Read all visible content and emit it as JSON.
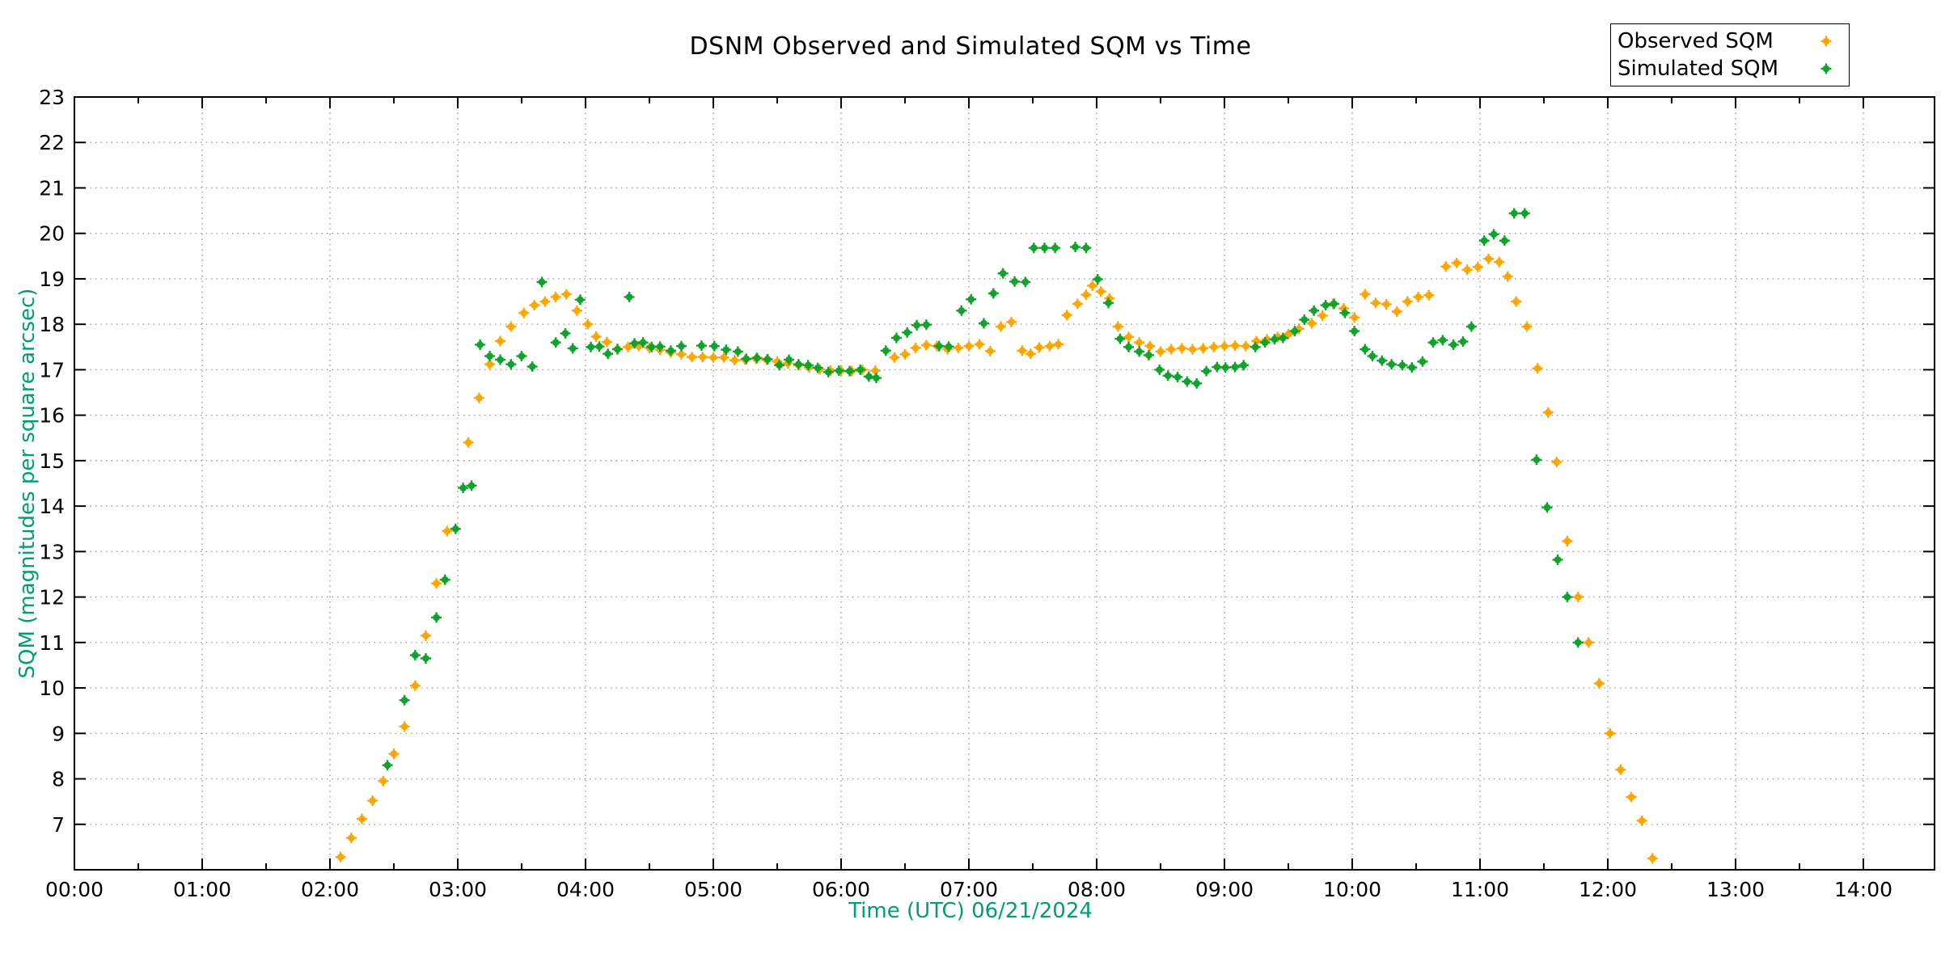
{
  "title": "DSNM Observed and Simulated SQM vs Time",
  "x_axis": {
    "label": "Time (UTC)   06/21/2024",
    "tick_labels": [
      "00:00",
      "01:00",
      "02:00",
      "03:00",
      "04:00",
      "05:00",
      "06:00",
      "07:00",
      "08:00",
      "09:00",
      "10:00",
      "11:00",
      "12:00",
      "13:00",
      "14:00"
    ]
  },
  "y_axis": {
    "label": "SQM (magnitudes per square arcsec)",
    "tick_labels": [
      "7",
      "8",
      "9",
      "10",
      "11",
      "12",
      "13",
      "14",
      "15",
      "16",
      "17",
      "18",
      "19",
      "20",
      "21",
      "22",
      "23"
    ]
  },
  "colors": {
    "axis_label_color": "#009E73",
    "observed": "#FFA500",
    "simulated": "#0FA32C",
    "grid": "#9e9e9e",
    "border": "#000000"
  },
  "legend": {
    "position": "top-right",
    "items": [
      {
        "label": "Observed SQM",
        "color": "#FFA500"
      },
      {
        "label": "Simulated SQM",
        "color": "#0FA32C"
      }
    ]
  },
  "chart_data": {
    "type": "scatter",
    "title": "DSNM Observed and Simulated SQM vs Time",
    "xlabel": "Time (UTC)   06/21/2024",
    "ylabel": "SQM (magnitudes per square arcsec)",
    "xlim_hours": [
      0,
      14.56
    ],
    "ylim": [
      6,
      23
    ],
    "grid": true,
    "x_major_tick_hours": 1,
    "x_minor_tick_hours": 0.5,
    "series": [
      {
        "name": "Observed SQM",
        "color": "#FFA500",
        "points": [
          [
            2.083,
            6.28
          ],
          [
            2.167,
            6.7
          ],
          [
            2.25,
            7.12
          ],
          [
            2.333,
            7.52
          ],
          [
            2.417,
            7.95
          ],
          [
            2.5,
            8.55
          ],
          [
            2.583,
            9.15
          ],
          [
            2.667,
            10.05
          ],
          [
            2.75,
            11.15
          ],
          [
            2.833,
            12.3
          ],
          [
            2.917,
            13.45
          ],
          [
            3.083,
            15.4
          ],
          [
            3.167,
            16.38
          ],
          [
            3.25,
            17.12
          ],
          [
            3.333,
            17.63
          ],
          [
            3.417,
            17.95
          ],
          [
            3.517,
            18.25
          ],
          [
            3.6,
            18.42
          ],
          [
            3.683,
            18.5
          ],
          [
            3.767,
            18.6
          ],
          [
            3.85,
            18.66
          ],
          [
            3.933,
            18.3
          ],
          [
            4.017,
            18.0
          ],
          [
            4.083,
            17.73
          ],
          [
            4.167,
            17.61
          ],
          [
            4.25,
            17.46
          ],
          [
            4.333,
            17.5
          ],
          [
            4.417,
            17.52
          ],
          [
            4.5,
            17.48
          ],
          [
            4.583,
            17.44
          ],
          [
            4.667,
            17.38
          ],
          [
            4.75,
            17.34
          ],
          [
            4.833,
            17.28
          ],
          [
            4.917,
            17.28
          ],
          [
            5.0,
            17.27
          ],
          [
            5.083,
            17.27
          ],
          [
            5.167,
            17.21
          ],
          [
            5.25,
            17.22
          ],
          [
            5.333,
            17.24
          ],
          [
            5.417,
            17.22
          ],
          [
            5.5,
            17.18
          ],
          [
            5.583,
            17.14
          ],
          [
            5.667,
            17.1
          ],
          [
            5.75,
            17.05
          ],
          [
            5.833,
            17.01
          ],
          [
            5.917,
            16.98
          ],
          [
            6.0,
            16.98
          ],
          [
            6.083,
            16.97
          ],
          [
            6.167,
            17.0
          ],
          [
            6.267,
            16.98
          ],
          [
            6.417,
            17.27
          ],
          [
            6.5,
            17.34
          ],
          [
            6.583,
            17.48
          ],
          [
            6.667,
            17.54
          ],
          [
            6.75,
            17.52
          ],
          [
            6.833,
            17.45
          ],
          [
            6.917,
            17.48
          ],
          [
            7.0,
            17.52
          ],
          [
            7.083,
            17.56
          ],
          [
            7.167,
            17.41
          ],
          [
            7.25,
            17.95
          ],
          [
            7.333,
            18.05
          ],
          [
            7.417,
            17.42
          ],
          [
            7.483,
            17.35
          ],
          [
            7.55,
            17.49
          ],
          [
            7.633,
            17.52
          ],
          [
            7.7,
            17.56
          ],
          [
            7.767,
            18.2
          ],
          [
            7.85,
            18.45
          ],
          [
            7.917,
            18.65
          ],
          [
            7.967,
            18.85
          ],
          [
            8.033,
            18.72
          ],
          [
            8.1,
            18.57
          ],
          [
            8.167,
            17.95
          ],
          [
            8.25,
            17.72
          ],
          [
            8.333,
            17.6
          ],
          [
            8.417,
            17.52
          ],
          [
            8.5,
            17.4
          ],
          [
            8.583,
            17.45
          ],
          [
            8.667,
            17.47
          ],
          [
            8.75,
            17.45
          ],
          [
            8.833,
            17.47
          ],
          [
            8.917,
            17.5
          ],
          [
            9.0,
            17.52
          ],
          [
            9.083,
            17.53
          ],
          [
            9.167,
            17.52
          ],
          [
            9.25,
            17.63
          ],
          [
            9.333,
            17.67
          ],
          [
            9.417,
            17.72
          ],
          [
            9.5,
            17.78
          ],
          [
            9.583,
            17.9
          ],
          [
            9.683,
            18.02
          ],
          [
            9.767,
            18.19
          ],
          [
            9.85,
            18.45
          ],
          [
            9.933,
            18.35
          ],
          [
            10.017,
            18.15
          ],
          [
            10.1,
            18.66
          ],
          [
            10.183,
            18.47
          ],
          [
            10.267,
            18.44
          ],
          [
            10.35,
            18.28
          ],
          [
            10.433,
            18.5
          ],
          [
            10.517,
            18.6
          ],
          [
            10.6,
            18.64
          ],
          [
            10.733,
            19.27
          ],
          [
            10.817,
            19.35
          ],
          [
            10.9,
            19.2
          ],
          [
            10.983,
            19.26
          ],
          [
            11.067,
            19.44
          ],
          [
            11.15,
            19.37
          ],
          [
            11.217,
            19.05
          ],
          [
            11.283,
            18.5
          ],
          [
            11.367,
            17.95
          ],
          [
            11.45,
            17.03
          ],
          [
            11.533,
            16.06
          ],
          [
            11.6,
            14.97
          ],
          [
            11.683,
            13.23
          ],
          [
            11.767,
            12.0
          ],
          [
            11.85,
            11.0
          ],
          [
            11.933,
            10.1
          ],
          [
            12.017,
            9.0
          ],
          [
            12.1,
            8.2
          ],
          [
            12.183,
            7.6
          ],
          [
            12.267,
            7.08
          ],
          [
            12.35,
            6.25
          ]
        ]
      },
      {
        "name": "Simulated SQM",
        "color": "#0FA32C",
        "points": [
          [
            2.45,
            8.3
          ],
          [
            2.583,
            9.73
          ],
          [
            2.667,
            10.72
          ],
          [
            2.75,
            10.65
          ],
          [
            2.833,
            11.55
          ],
          [
            2.9,
            12.38
          ],
          [
            2.983,
            13.5
          ],
          [
            3.042,
            14.4
          ],
          [
            3.108,
            14.45
          ],
          [
            3.175,
            17.55
          ],
          [
            3.25,
            17.3
          ],
          [
            3.333,
            17.22
          ],
          [
            3.417,
            17.12
          ],
          [
            3.5,
            17.3
          ],
          [
            3.583,
            17.07
          ],
          [
            3.658,
            18.93
          ],
          [
            3.767,
            17.6
          ],
          [
            3.842,
            17.8
          ],
          [
            3.9,
            17.47
          ],
          [
            3.958,
            18.54
          ],
          [
            4.042,
            17.5
          ],
          [
            4.108,
            17.51
          ],
          [
            4.175,
            17.35
          ],
          [
            4.25,
            17.45
          ],
          [
            4.342,
            18.6
          ],
          [
            4.383,
            17.58
          ],
          [
            4.45,
            17.6
          ],
          [
            4.517,
            17.5
          ],
          [
            4.583,
            17.51
          ],
          [
            4.667,
            17.42
          ],
          [
            4.75,
            17.52
          ],
          [
            4.908,
            17.53
          ],
          [
            5.008,
            17.52
          ],
          [
            5.1,
            17.44
          ],
          [
            5.192,
            17.4
          ],
          [
            5.258,
            17.24
          ],
          [
            5.342,
            17.26
          ],
          [
            5.425,
            17.23
          ],
          [
            5.517,
            17.1
          ],
          [
            5.592,
            17.22
          ],
          [
            5.667,
            17.12
          ],
          [
            5.742,
            17.1
          ],
          [
            5.817,
            17.04
          ],
          [
            5.9,
            16.95
          ],
          [
            5.983,
            16.98
          ],
          [
            6.067,
            16.97
          ],
          [
            6.15,
            17.0
          ],
          [
            6.217,
            16.85
          ],
          [
            6.275,
            16.82
          ],
          [
            6.35,
            17.42
          ],
          [
            6.433,
            17.7
          ],
          [
            6.517,
            17.82
          ],
          [
            6.592,
            17.98
          ],
          [
            6.667,
            17.99
          ],
          [
            6.767,
            17.52
          ],
          [
            6.842,
            17.51
          ],
          [
            6.942,
            18.3
          ],
          [
            7.017,
            18.55
          ],
          [
            7.117,
            18.02
          ],
          [
            7.192,
            18.68
          ],
          [
            7.267,
            19.12
          ],
          [
            7.358,
            18.94
          ],
          [
            7.442,
            18.93
          ],
          [
            7.508,
            19.68
          ],
          [
            7.592,
            19.68
          ],
          [
            7.675,
            19.68
          ],
          [
            7.833,
            19.7
          ],
          [
            7.917,
            19.68
          ],
          [
            8.008,
            18.99
          ],
          [
            8.092,
            18.47
          ],
          [
            8.183,
            17.68
          ],
          [
            8.25,
            17.5
          ],
          [
            8.333,
            17.4
          ],
          [
            8.408,
            17.32
          ],
          [
            8.492,
            17.0
          ],
          [
            8.558,
            16.87
          ],
          [
            8.633,
            16.84
          ],
          [
            8.708,
            16.74
          ],
          [
            8.783,
            16.7
          ],
          [
            8.858,
            16.97
          ],
          [
            8.942,
            17.06
          ],
          [
            9.008,
            17.05
          ],
          [
            9.083,
            17.06
          ],
          [
            9.15,
            17.1
          ],
          [
            9.242,
            17.5
          ],
          [
            9.317,
            17.6
          ],
          [
            9.392,
            17.67
          ],
          [
            9.458,
            17.7
          ],
          [
            9.55,
            17.85
          ],
          [
            9.625,
            18.1
          ],
          [
            9.7,
            18.3
          ],
          [
            9.792,
            18.42
          ],
          [
            9.858,
            18.45
          ],
          [
            9.942,
            18.25
          ],
          [
            10.017,
            17.85
          ],
          [
            10.1,
            17.45
          ],
          [
            10.158,
            17.3
          ],
          [
            10.233,
            17.2
          ],
          [
            10.308,
            17.12
          ],
          [
            10.392,
            17.1
          ],
          [
            10.467,
            17.05
          ],
          [
            10.55,
            17.18
          ],
          [
            10.633,
            17.6
          ],
          [
            10.708,
            17.65
          ],
          [
            10.792,
            17.55
          ],
          [
            10.867,
            17.62
          ],
          [
            10.933,
            17.95
          ],
          [
            11.033,
            19.84
          ],
          [
            11.108,
            19.98
          ],
          [
            11.192,
            19.84
          ],
          [
            11.267,
            20.44
          ],
          [
            11.35,
            20.44
          ],
          [
            11.442,
            15.02
          ],
          [
            11.525,
            13.97
          ],
          [
            11.608,
            12.82
          ],
          [
            11.683,
            12.0
          ],
          [
            11.767,
            11.0
          ]
        ]
      }
    ]
  }
}
